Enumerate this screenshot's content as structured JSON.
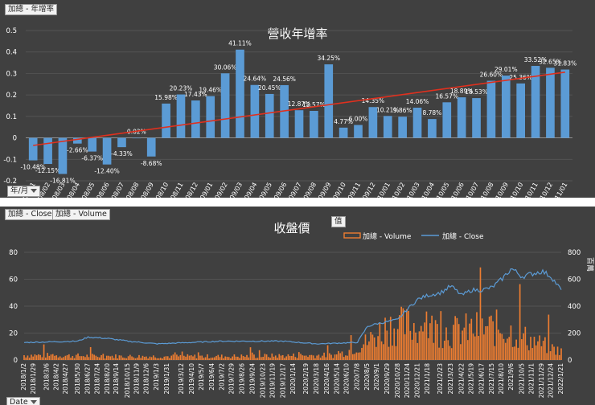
{
  "panel1": {
    "field_button": "加總 - 年增率",
    "axis_button": "年/月",
    "chart_data": {
      "type": "bar",
      "title": "營收年增率",
      "categories": [
        "108/01",
        "108/02",
        "108/03",
        "108/04",
        "108/05",
        "108/06",
        "108/07",
        "108/08",
        "108/09",
        "108/10",
        "108/11",
        "108/12",
        "109/01",
        "109/02",
        "109/03",
        "109/04",
        "109/05",
        "109/06",
        "109/07",
        "109/08",
        "109/09",
        "109/10",
        "109/11",
        "109/12",
        "110/01",
        "110/02",
        "110/03",
        "110/04",
        "110/05",
        "110/06",
        "110/07",
        "110/08",
        "110/09",
        "110/10",
        "110/11",
        "110/12",
        "111/01"
      ],
      "values": [
        -0.1048,
        -0.1215,
        -0.1681,
        -0.0266,
        -0.0637,
        -0.124,
        -0.0433,
        0.0002,
        -0.0868,
        0.1598,
        0.2023,
        0.1743,
        0.1946,
        0.3006,
        0.4111,
        0.2464,
        0.2045,
        0.2456,
        0.1287,
        0.1257,
        0.3425,
        0.0477,
        0.06,
        0.1435,
        0.1021,
        0.0986,
        0.1406,
        0.0878,
        0.1657,
        0.1889,
        0.1853,
        0.266,
        0.2901,
        0.2536,
        0.3352,
        0.3265,
        0.3183
      ],
      "labels": [
        "-10.48%",
        "-12.15%",
        "-16.81%",
        "-2.66%",
        "-6.37%",
        "-12.40%",
        "-4.33%",
        "0.02%",
        "-8.68%",
        "15.98%",
        "20.23%",
        "17.43%",
        "19.46%",
        "30.06%",
        "41.11%",
        "24.64%",
        "20.45%",
        "24.56%",
        "12.87%",
        "12.57%",
        "34.25%",
        "4.77%",
        "6.00%",
        "14.35%",
        "10.21%",
        "9.86%",
        "14.06%",
        "8.78%",
        "16.57%",
        "18.89%",
        "18.53%",
        "26.60%",
        "29.01%",
        "25.36%",
        "33.52%",
        "32.65%",
        "31.83%"
      ],
      "yticks": [
        -0.2,
        -0.1,
        0,
        0.1,
        0.2,
        0.3,
        0.4,
        0.5
      ],
      "ylim": [
        -0.2,
        0.5
      ],
      "trendline": true,
      "colors": {
        "bar": "#5b9bd5",
        "trend": "#e0301e",
        "background": "#404040",
        "text": "#ffffff"
      }
    }
  },
  "panel2": {
    "field_buttons": [
      "加總 - Close",
      "加總 - Volume"
    ],
    "axis_button": "Date",
    "legend_badge": "值",
    "chart_data": {
      "type": "line",
      "title": "收盤價",
      "series": [
        {
          "name": "加總 - Volume",
          "kind": "bar",
          "axis": "right",
          "color": "#ed7d31"
        },
        {
          "name": "加總 - Close",
          "kind": "line",
          "axis": "left",
          "color": "#5b9bd5"
        }
      ],
      "left_yticks": [
        0,
        20,
        40,
        60,
        80
      ],
      "right_yticks": [
        0,
        200,
        400,
        600,
        800
      ],
      "ylim_left": [
        0,
        80
      ],
      "ylim_right": [
        0,
        800
      ],
      "right_axis_label": "百萬",
      "xticks": [
        "2018/1/2",
        "2018/1/29",
        "2018/3/6",
        "2018/4/2",
        "2018/4/27",
        "2018/5/30",
        "2018/6/27",
        "2018/7/24",
        "2018/8/20",
        "2018/9/14",
        "2018/10/15",
        "2018/11/9",
        "2018/12/6",
        "2019/1/3",
        "2019/1/31",
        "2019/3/12",
        "2019/4/10",
        "2019/5/7",
        "2019/6/4",
        "2019/7/2",
        "2019/7/29",
        "2019/8/26",
        "2019/9/24",
        "2019/10/23",
        "2019/11/19",
        "2019/12/17",
        "2020/1/14",
        "2020/2/19",
        "2020/3/18",
        "2020/4/16",
        "2020/5/14",
        "2020/6/10",
        "2020/7/8",
        "2020/8/5",
        "2020/9/1",
        "2020/9/29",
        "2020/10/28",
        "2020/11/24",
        "2020/12/21",
        "2021/1/18",
        "2021/2/23",
        "2021/3/23",
        "2021/4/22",
        "2021/5/19",
        "2021/6/17",
        "2021/7/15",
        "2021/8/10",
        "2021/9/6",
        "2021/10/5",
        "2021/11/1",
        "2021/11/29",
        "2021/12/24",
        "2022/1/21"
      ],
      "close_profile": [
        [
          "2018/1/2",
          13
        ],
        [
          "2018/5/30",
          14
        ],
        [
          "2018/6/27",
          17
        ],
        [
          "2018/8/20",
          16
        ],
        [
          "2018/10/15",
          14
        ],
        [
          "2019/1/3",
          12
        ],
        [
          "2019/7/2",
          14
        ],
        [
          "2019/12/17",
          14
        ],
        [
          "2020/3/18",
          12
        ],
        [
          "2020/7/8",
          13
        ],
        [
          "2020/8/5",
          25
        ],
        [
          "2020/9/1",
          27
        ],
        [
          "2020/10/28",
          30
        ],
        [
          "2020/11/24",
          38
        ],
        [
          "2020/12/21",
          45
        ],
        [
          "2021/1/18",
          48
        ],
        [
          "2021/2/23",
          50
        ],
        [
          "2021/3/23",
          55
        ],
        [
          "2021/4/22",
          48
        ],
        [
          "2021/5/19",
          52
        ],
        [
          "2021/6/17",
          52
        ],
        [
          "2021/7/15",
          54
        ],
        [
          "2021/8/10",
          60
        ],
        [
          "2021/9/6",
          68
        ],
        [
          "2021/10/5",
          62
        ],
        [
          "2021/11/1",
          64
        ],
        [
          "2021/11/29",
          66
        ],
        [
          "2021/12/24",
          62
        ],
        [
          "2022/1/21",
          52
        ]
      ],
      "volume_profile": [
        [
          "2018/1/2",
          40
        ],
        [
          "2018/10/15",
          30
        ],
        [
          "2019/7/2",
          30
        ],
        [
          "2020/5/14",
          40
        ],
        [
          "2020/8/5",
          150
        ],
        [
          "2020/9/29",
          280
        ],
        [
          "2020/12/21",
          280
        ],
        [
          "2021/3/23",
          230
        ],
        [
          "2021/6/17",
          260
        ],
        [
          "2021/8/10",
          260
        ],
        [
          "2021/9/6",
          230
        ],
        [
          "2021/11/1",
          160
        ],
        [
          "2021/12/24",
          100
        ],
        [
          "2022/1/21",
          70
        ]
      ]
    }
  }
}
